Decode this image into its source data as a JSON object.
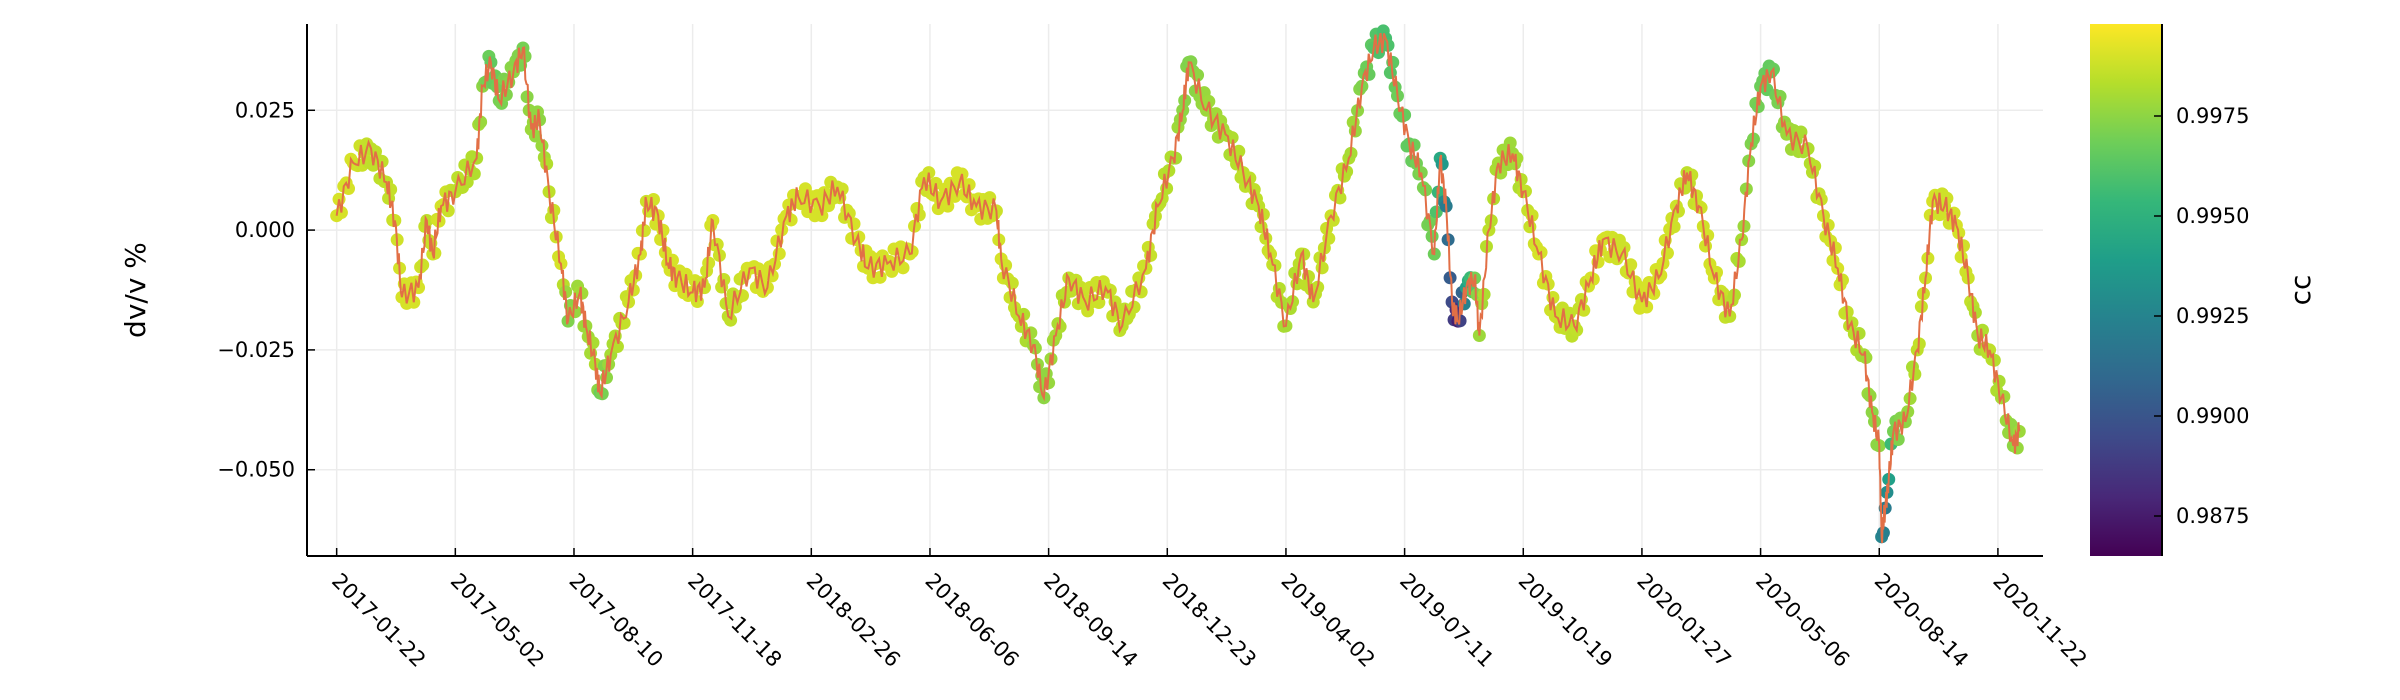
{
  "chart_data": {
    "type": "scatter",
    "title": "",
    "xlabel": "",
    "ylabel": "dv/v %",
    "x_axis": {
      "type": "date",
      "range": [
        "2016-12-28",
        "2020-12-30"
      ],
      "tick_labels": [
        "2017-01-22",
        "2017-05-02",
        "2017-08-10",
        "2017-11-18",
        "2018-02-26",
        "2018-06-06",
        "2018-09-14",
        "2018-12-23",
        "2019-04-02",
        "2019-07-11",
        "2019-10-19",
        "2020-01-27",
        "2020-05-06",
        "2020-08-14",
        "2020-11-22"
      ]
    },
    "y_axis": {
      "range": [
        -0.068,
        0.043
      ],
      "ticks": [
        0.025,
        0.0,
        -0.025,
        -0.05
      ],
      "tick_labels": [
        "0.025",
        "0.000",
        "−0.025",
        "−0.050"
      ]
    },
    "grid": true,
    "line_color": "#e26f46",
    "colorbar": {
      "label": "cc",
      "colormap": "viridis",
      "range": [
        0.9865,
        0.9998
      ],
      "ticks": [
        0.9875,
        0.99,
        0.9925,
        0.995,
        0.9975
      ],
      "tick_labels": [
        "0.9875",
        "0.9900",
        "0.9925",
        "0.9950",
        "0.9975"
      ]
    },
    "series": [
      {
        "points": [
          [
            "2017-01-22",
            0.003,
            0.999
          ],
          [
            "2017-02-05",
            0.014,
            0.999
          ],
          [
            "2017-02-20",
            0.017,
            0.9985
          ],
          [
            "2017-03-05",
            0.01,
            0.9985
          ],
          [
            "2017-03-12",
            0.002,
            0.9988
          ],
          [
            "2017-03-18",
            -0.014,
            0.999
          ],
          [
            "2017-04-01",
            -0.012,
            0.999
          ],
          [
            "2017-04-08",
            0.002,
            0.9985
          ],
          [
            "2017-04-13",
            -0.005,
            0.9988
          ],
          [
            "2017-04-20",
            0.005,
            0.999
          ],
          [
            "2017-05-02",
            0.008,
            0.9985
          ],
          [
            "2017-05-20",
            0.015,
            0.9982
          ],
          [
            "2017-05-25",
            0.03,
            0.9975
          ],
          [
            "2017-06-01",
            0.035,
            0.9965
          ],
          [
            "2017-06-08",
            0.027,
            0.997
          ],
          [
            "2017-06-20",
            0.033,
            0.9975
          ],
          [
            "2017-06-28",
            0.038,
            0.997
          ],
          [
            "2017-07-05",
            0.021,
            0.9978
          ],
          [
            "2017-07-12",
            0.023,
            0.9975
          ],
          [
            "2017-07-20",
            0.008,
            0.9985
          ],
          [
            "2017-07-30",
            -0.007,
            0.999
          ],
          [
            "2017-08-05",
            -0.019,
            0.9972
          ],
          [
            "2017-08-15",
            -0.013,
            0.998
          ],
          [
            "2017-08-20",
            -0.02,
            0.9978
          ],
          [
            "2017-08-28",
            -0.028,
            0.9982
          ],
          [
            "2017-09-01",
            -0.034,
            0.9968
          ],
          [
            "2017-09-10",
            -0.026,
            0.998
          ],
          [
            "2017-09-25",
            -0.015,
            0.9988
          ],
          [
            "2017-10-05",
            -0.005,
            0.999
          ],
          [
            "2017-10-10",
            0.006,
            0.9988
          ],
          [
            "2017-10-20",
            0.003,
            0.999
          ],
          [
            "2017-10-28",
            -0.007,
            0.999
          ],
          [
            "2017-11-05",
            -0.01,
            0.999
          ],
          [
            "2017-11-18",
            -0.013,
            0.999
          ],
          [
            "2017-11-28",
            -0.012,
            0.9988
          ],
          [
            "2017-12-05",
            0.002,
            0.999
          ],
          [
            "2017-12-18",
            -0.018,
            0.9985
          ],
          [
            "2018-01-05",
            -0.008,
            0.999
          ],
          [
            "2018-01-20",
            -0.012,
            0.999
          ],
          [
            "2018-02-05",
            0.003,
            0.999
          ],
          [
            "2018-02-15",
            0.007,
            0.999
          ],
          [
            "2018-03-05",
            0.005,
            0.999
          ],
          [
            "2018-03-20",
            0.009,
            0.9988
          ],
          [
            "2018-04-05",
            -0.002,
            0.999
          ],
          [
            "2018-04-15",
            -0.008,
            0.999
          ],
          [
            "2018-05-01",
            -0.007,
            0.999
          ],
          [
            "2018-05-20",
            -0.005,
            0.999
          ],
          [
            "2018-06-01",
            0.011,
            0.9988
          ],
          [
            "2018-06-15",
            0.006,
            0.999
          ],
          [
            "2018-07-01",
            0.01,
            0.999
          ],
          [
            "2018-07-15",
            0.005,
            0.999
          ],
          [
            "2018-08-01",
            0.004,
            0.9988
          ],
          [
            "2018-08-05",
            -0.006,
            0.999
          ],
          [
            "2018-08-20",
            -0.018,
            0.9985
          ],
          [
            "2018-09-01",
            -0.024,
            0.9978
          ],
          [
            "2018-09-10",
            -0.035,
            0.9975
          ],
          [
            "2018-09-20",
            -0.022,
            0.998
          ],
          [
            "2018-10-01",
            -0.01,
            0.9985
          ],
          [
            "2018-10-15",
            -0.015,
            0.9988
          ],
          [
            "2018-11-01",
            -0.012,
            0.9988
          ],
          [
            "2018-11-15",
            -0.02,
            0.9985
          ],
          [
            "2018-12-05",
            -0.008,
            0.9988
          ],
          [
            "2018-12-15",
            0.005,
            0.9985
          ],
          [
            "2018-12-28",
            0.015,
            0.9982
          ],
          [
            "2019-01-05",
            0.025,
            0.9975
          ],
          [
            "2019-01-10",
            0.035,
            0.9972
          ],
          [
            "2019-01-25",
            0.025,
            0.9978
          ],
          [
            "2019-02-10",
            0.02,
            0.998
          ],
          [
            "2019-02-25",
            0.012,
            0.9985
          ],
          [
            "2019-03-10",
            0.005,
            0.9985
          ],
          [
            "2019-03-20",
            -0.005,
            0.9988
          ],
          [
            "2019-04-02",
            -0.02,
            0.998
          ],
          [
            "2019-04-15",
            -0.005,
            0.9985
          ],
          [
            "2019-04-25",
            -0.015,
            0.9985
          ],
          [
            "2019-05-10",
            0.003,
            0.9988
          ],
          [
            "2019-05-25",
            0.015,
            0.9982
          ],
          [
            "2019-06-05",
            0.03,
            0.9972
          ],
          [
            "2019-06-15",
            0.038,
            0.9962
          ],
          [
            "2019-06-25",
            0.04,
            0.9958
          ],
          [
            "2019-07-05",
            0.028,
            0.9968
          ],
          [
            "2019-07-15",
            0.018,
            0.9965
          ],
          [
            "2019-07-25",
            0.012,
            0.9972
          ],
          [
            "2019-08-05",
            -0.005,
            0.9968
          ],
          [
            "2019-08-10",
            0.015,
            0.9945
          ],
          [
            "2019-08-15",
            0.005,
            0.992
          ],
          [
            "2019-08-20",
            -0.015,
            0.9895
          ],
          [
            "2019-08-25",
            -0.019,
            0.9875
          ],
          [
            "2019-09-01",
            -0.012,
            0.994
          ],
          [
            "2019-09-08",
            -0.01,
            0.997
          ],
          [
            "2019-09-12",
            -0.022,
            0.9978
          ],
          [
            "2019-09-20",
            0.0,
            0.9985
          ],
          [
            "2019-09-28",
            0.014,
            0.998
          ],
          [
            "2019-10-10",
            0.016,
            0.9978
          ],
          [
            "2019-10-19",
            0.008,
            0.9985
          ],
          [
            "2019-11-01",
            -0.005,
            0.999
          ],
          [
            "2019-11-15",
            -0.018,
            0.9988
          ],
          [
            "2019-12-01",
            -0.02,
            0.9985
          ],
          [
            "2019-12-15",
            -0.01,
            0.999
          ],
          [
            "2019-12-25",
            -0.002,
            0.999
          ],
          [
            "2020-01-10",
            -0.005,
            0.9988
          ],
          [
            "2020-01-27",
            -0.015,
            0.999
          ],
          [
            "2020-02-10",
            -0.01,
            0.999
          ],
          [
            "2020-02-25",
            0.005,
            0.9988
          ],
          [
            "2020-03-05",
            0.012,
            0.9985
          ],
          [
            "2020-03-15",
            0.005,
            0.9988
          ],
          [
            "2020-03-28",
            -0.01,
            0.999
          ],
          [
            "2020-04-10",
            -0.018,
            0.9985
          ],
          [
            "2020-04-20",
            -0.002,
            0.998
          ],
          [
            "2020-04-28",
            0.018,
            0.9972
          ],
          [
            "2020-05-06",
            0.03,
            0.9968
          ],
          [
            "2020-05-15",
            0.033,
            0.9965
          ],
          [
            "2020-05-28",
            0.02,
            0.9978
          ],
          [
            "2020-06-15",
            0.017,
            0.9982
          ],
          [
            "2020-06-28",
            0.003,
            0.9988
          ],
          [
            "2020-07-10",
            -0.008,
            0.999
          ],
          [
            "2020-07-20",
            -0.02,
            0.9985
          ],
          [
            "2020-08-01",
            -0.026,
            0.998
          ],
          [
            "2020-08-08",
            -0.038,
            0.9975
          ],
          [
            "2020-08-14",
            -0.045,
            0.9975
          ],
          [
            "2020-08-16",
            -0.064,
            0.9925
          ],
          [
            "2020-08-19",
            -0.058,
            0.992
          ],
          [
            "2020-08-22",
            -0.052,
            0.994
          ],
          [
            "2020-08-26",
            -0.042,
            0.997
          ],
          [
            "2020-09-05",
            -0.04,
            0.9975
          ],
          [
            "2020-09-15",
            -0.025,
            0.9985
          ],
          [
            "2020-09-22",
            -0.01,
            0.9988
          ],
          [
            "2020-09-28",
            0.006,
            0.999
          ],
          [
            "2020-10-08",
            0.005,
            0.9988
          ],
          [
            "2020-10-18",
            0.001,
            0.999
          ],
          [
            "2020-10-28",
            -0.01,
            0.9988
          ],
          [
            "2020-11-05",
            -0.022,
            0.998
          ],
          [
            "2020-11-15",
            -0.025,
            0.9985
          ],
          [
            "2020-11-25",
            -0.035,
            0.998
          ],
          [
            "2020-12-05",
            -0.045,
            0.9975
          ],
          [
            "2020-12-10",
            -0.042,
            0.9978
          ]
        ]
      }
    ]
  }
}
